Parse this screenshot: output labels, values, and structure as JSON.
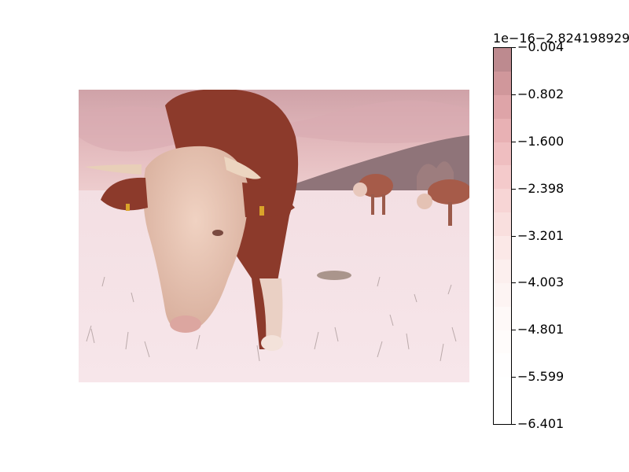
{
  "colorbar": {
    "offset_text": "1e−16−2.824198929",
    "ticks": [
      {
        "label": "−0.004",
        "frac": 0.0
      },
      {
        "label": "−0.802",
        "frac": 0.125
      },
      {
        "label": "−1.600",
        "frac": 0.25
      },
      {
        "label": "−2.398",
        "frac": 0.375
      },
      {
        "label": "−3.201",
        "frac": 0.5
      },
      {
        "label": "−4.003",
        "frac": 0.625
      },
      {
        "label": "−4.801",
        "frac": 0.75
      },
      {
        "label": "−5.599",
        "frac": 0.875
      },
      {
        "label": "−6.401",
        "frac": 1.0
      }
    ],
    "band_colors": [
      "#bd8a8f",
      "#d0979b",
      "#dea4a8",
      "#e8b1b4",
      "#efbec0",
      "#f4cacb",
      "#f7d5d5",
      "#f9dfde",
      "#fbe8e7",
      "#fcefee",
      "#fdf4f3",
      "#fef9f8",
      "#fffcfb",
      "#fffefe",
      "#ffffff",
      "#ffffff"
    ]
  },
  "colors": {
    "sky": "#e0b4b8",
    "hill": "#8d7277",
    "snow": "#f6e4e8",
    "cow_brown": "#8e3b2c",
    "cow_cream": "#e6c4b4"
  },
  "icons": [
    "cow-photo"
  ]
}
